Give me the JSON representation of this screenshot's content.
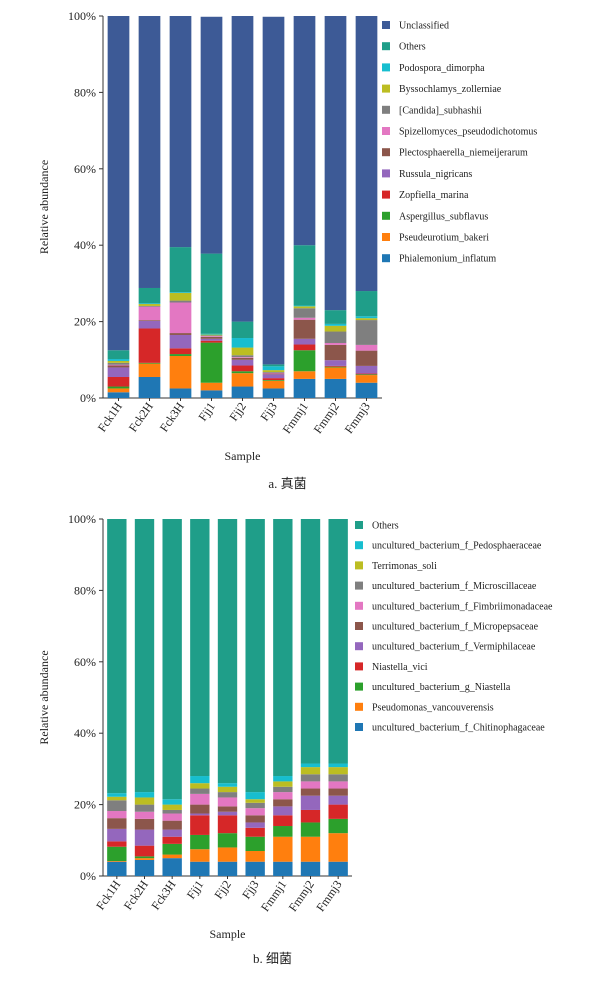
{
  "chart_data": [
    {
      "type": "bar",
      "stacked": true,
      "caption": "a. 真菌",
      "xlabel": "Sample",
      "ylabel": "Relative abundance",
      "ylim": [
        0,
        100
      ],
      "yticks": [
        "0%",
        "20%",
        "40%",
        "60%",
        "80%",
        "100%"
      ],
      "legend_position": "right",
      "categories": [
        "Fck1H",
        "Fck2H",
        "Fck3H",
        "Fjj1",
        "Fjj2",
        "Fjj3",
        "Fmmj1",
        "Fmmj2",
        "Fmmj3"
      ],
      "series": [
        {
          "name": "Phialemonium_inflatum",
          "color": "#1f77b4",
          "values": [
            1.5,
            5.5,
            2.5,
            2.0,
            3.0,
            2.5,
            5.0,
            5.0,
            4.0
          ]
        },
        {
          "name": "Pseudeurotium_bakeri",
          "color": "#ff7f0e",
          "values": [
            1.0,
            3.5,
            8.5,
            2.0,
            3.5,
            2.0,
            2.0,
            3.0,
            2.0
          ]
        },
        {
          "name": "Aspergillus_subflavus",
          "color": "#2ca02c",
          "values": [
            0.5,
            0.2,
            0.5,
            10.5,
            0.5,
            0.2,
            5.5,
            0.2,
            0.2
          ]
        },
        {
          "name": "Zopfiella_marina",
          "color": "#d62728",
          "values": [
            2.5,
            9.0,
            1.5,
            0.5,
            1.5,
            0.5,
            1.5,
            0.2,
            0.2
          ]
        },
        {
          "name": "Russula_nigricans",
          "color": "#9467bd",
          "values": [
            2.5,
            2.0,
            3.5,
            0.5,
            1.5,
            1.0,
            1.5,
            1.5,
            2.0
          ]
        },
        {
          "name": "Plectosphaerella_niemeijerarum",
          "color": "#8c564b",
          "values": [
            0.5,
            0.2,
            0.5,
            0.5,
            0.5,
            0.2,
            5.0,
            4.0,
            4.0
          ]
        },
        {
          "name": "Spizellomyces_pseudodichotomus",
          "color": "#e377c2",
          "values": [
            0.2,
            3.5,
            8.0,
            0.2,
            0.2,
            0.2,
            0.5,
            0.5,
            1.5
          ]
        },
        {
          "name": "[Candida]_subhashii",
          "color": "#7f7f7f",
          "values": [
            0.5,
            0.2,
            0.5,
            0.2,
            0.5,
            0.2,
            2.5,
            3.0,
            6.5
          ]
        },
        {
          "name": "Byssochlamys_zollerniae",
          "color": "#bcbd22",
          "values": [
            0.5,
            0.5,
            2.0,
            0.2,
            2.0,
            0.5,
            0.5,
            1.5,
            0.5
          ]
        },
        {
          "name": "Podospora_dimorpha",
          "color": "#17becf",
          "values": [
            0.5,
            0.2,
            0.2,
            0.2,
            2.5,
            1.0,
            0.2,
            0.5,
            0.5
          ]
        },
        {
          "name": "Others",
          "color": "#1f9e89",
          "values": [
            2.3,
            4.0,
            11.8,
            21.0,
            4.3,
            0.5,
            15.8,
            3.6,
            6.6
          ]
        },
        {
          "name": "Unclassified",
          "color": "#3d5a96",
          "values": [
            87.5,
            71.2,
            60.5,
            62.0,
            80.0,
            91.0,
            60.0,
            77.0,
            72.0
          ]
        }
      ]
    },
    {
      "type": "bar",
      "stacked": true,
      "caption": "b. 细菌",
      "xlabel": "Sample",
      "ylabel": "Relative abundance",
      "ylim": [
        0,
        100
      ],
      "yticks": [
        "0%",
        "20%",
        "40%",
        "60%",
        "80%",
        "100%"
      ],
      "legend_position": "right",
      "categories": [
        "Fck1H",
        "Fck2H",
        "Fck3H",
        "Fjj1",
        "Fjj2",
        "Fjj3",
        "Fmmj1",
        "Fmmj2",
        "Fmmj3"
      ],
      "series": [
        {
          "name": "uncultured_bacterium_f_Chitinophagaceae",
          "color": "#1f77b4",
          "values": [
            4.0,
            4.5,
            5.0,
            4.0,
            4.0,
            4.0,
            4.0,
            4.0,
            4.0
          ]
        },
        {
          "name": "Pseudomonas_vancouverensis",
          "color": "#ff7f0e",
          "values": [
            0.2,
            0.5,
            1.0,
            3.5,
            4.0,
            3.0,
            7.0,
            7.0,
            8.0
          ]
        },
        {
          "name": "uncultured_bacterium_g_Niastella",
          "color": "#2ca02c",
          "values": [
            4.0,
            0.5,
            3.0,
            4.0,
            4.0,
            4.0,
            3.0,
            4.0,
            4.0
          ]
        },
        {
          "name": "Niastella_vici",
          "color": "#d62728",
          "values": [
            1.5,
            3.0,
            2.0,
            5.5,
            5.0,
            2.5,
            3.0,
            3.5,
            4.0
          ]
        },
        {
          "name": "uncultured_bacterium_f_Vermiphilaceae",
          "color": "#9467bd",
          "values": [
            3.5,
            4.5,
            2.0,
            0.5,
            1.0,
            1.5,
            2.5,
            4.0,
            2.5
          ]
        },
        {
          "name": "uncultured_bacterium_f_Micropepsaceae",
          "color": "#8c564b",
          "values": [
            3.0,
            3.0,
            2.5,
            2.5,
            1.5,
            2.0,
            2.0,
            2.0,
            2.0
          ]
        },
        {
          "name": "uncultured_bacterium_f_Fimbriimonadaceae",
          "color": "#e377c2",
          "values": [
            2.0,
            2.0,
            2.0,
            3.0,
            2.5,
            2.0,
            2.0,
            2.0,
            2.0
          ]
        },
        {
          "name": "uncultured_bacterium_f_Microscillaceae",
          "color": "#7f7f7f",
          "values": [
            3.0,
            2.0,
            1.0,
            1.5,
            1.5,
            1.5,
            1.5,
            2.0,
            2.0
          ]
        },
        {
          "name": "Terrimonas_soli",
          "color": "#bcbd22",
          "values": [
            1.0,
            2.0,
            1.5,
            1.5,
            1.5,
            1.0,
            1.5,
            2.0,
            2.0
          ]
        },
        {
          "name": "uncultured_bacterium_f_Pedosphaeraceae",
          "color": "#17becf",
          "values": [
            1.0,
            1.5,
            1.5,
            2.0,
            1.0,
            2.0,
            1.5,
            1.0,
            1.0
          ]
        },
        {
          "name": "Others",
          "color": "#1f9e89",
          "values": [
            76.8,
            76.5,
            78.5,
            72.0,
            74.0,
            76.5,
            72.0,
            68.5,
            68.5
          ]
        }
      ]
    }
  ]
}
